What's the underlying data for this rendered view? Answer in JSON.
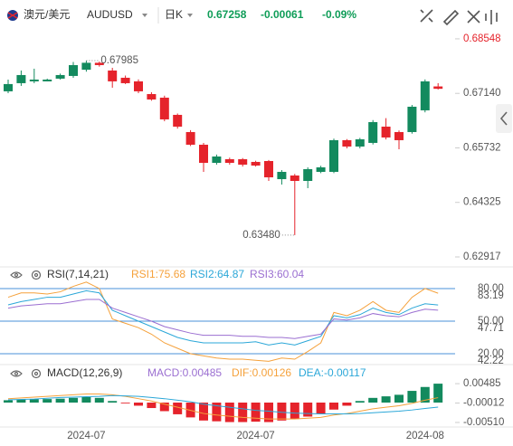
{
  "header": {
    "symbol": "澳元/美元",
    "code": "AUDUSD",
    "period": "日K",
    "price": "0.67258",
    "change": "-0.00061",
    "change_pct": "-0.09%"
  },
  "chart_data": [
    {
      "type": "candlestick",
      "categories": [
        null,
        null,
        null,
        null,
        null,
        null,
        "2024-07",
        null,
        null,
        null,
        null,
        null,
        null,
        null,
        null,
        null,
        null,
        null,
        null,
        "2024-07",
        null,
        null,
        null,
        null,
        null,
        null,
        null,
        null,
        null,
        null,
        null,
        null,
        "2024-08",
        null
      ],
      "open": [
        0.67193,
        0.67403,
        0.6745,
        0.6745,
        0.6752,
        0.6759,
        0.6775,
        0.6793,
        0.6773,
        0.67543,
        0.6745,
        0.67122,
        0.67029,
        0.66585,
        0.66141,
        0.65814,
        0.65346,
        0.6544,
        0.6544,
        0.6537,
        0.65393,
        0.64925,
        0.65019,
        0.64879,
        0.65113,
        0.65113,
        0.65931,
        0.65767,
        0.65861,
        0.66281,
        0.66141,
        0.66141,
        0.66702,
        0.67319
      ],
      "high": [
        0.67496,
        0.6773,
        0.67777,
        0.6752,
        0.6765,
        0.6795,
        0.67985,
        0.6796,
        0.678,
        0.676,
        0.675,
        0.6717,
        0.6708,
        0.6662,
        0.6619,
        0.6586,
        0.6556,
        0.6548,
        0.6547,
        0.654,
        0.6542,
        0.65159,
        0.6506,
        0.6523,
        0.6527,
        0.6597,
        0.6596,
        0.6599,
        0.6645,
        0.665,
        0.6618,
        0.6684,
        0.675,
        0.67403
      ],
      "low": [
        0.67146,
        0.67333,
        0.67403,
        0.6745,
        0.67496,
        0.67543,
        0.677,
        0.6783,
        0.67286,
        0.6738,
        0.67146,
        0.6695,
        0.6642,
        0.6623,
        0.6578,
        0.65113,
        0.653,
        0.653,
        0.6525,
        0.6525,
        0.64879,
        0.64785,
        0.6348,
        0.64692,
        0.6508,
        0.6508,
        0.6572,
        0.6572,
        0.6582,
        0.6595,
        0.65697,
        0.661,
        0.6665,
        0.6724
      ],
      "close": [
        0.6738,
        0.67613,
        0.67496,
        0.67496,
        0.67613,
        0.6787,
        0.6793,
        0.6787,
        0.6745,
        0.67403,
        0.67193,
        0.66982,
        0.66468,
        0.66281,
        0.65814,
        0.65346,
        0.6551,
        0.65346,
        0.65299,
        0.65276,
        0.64972,
        0.65113,
        0.64879,
        0.65183,
        0.6523,
        0.65931,
        0.65767,
        0.65954,
        0.66398,
        0.66001,
        0.65931,
        0.66795,
        0.6745,
        0.67258
      ],
      "up_color": "#138a5e",
      "down_color": "#e5232b",
      "ylim": [
        0.6273,
        0.6885
      ],
      "yticks": [
        {
          "value": 0.68548,
          "label": "0.68548"
        },
        {
          "value": 0.6714,
          "label": "0.67140"
        },
        {
          "value": 0.65732,
          "label": "0.65732"
        },
        {
          "value": 0.64325,
          "label": "0.64325"
        },
        {
          "value": 0.62917,
          "label": "0.62917"
        }
      ],
      "max_label": "0.67985",
      "min_label": "0.63480"
    },
    {
      "type": "line",
      "title": "RSI(7,14,21)",
      "series": [
        {
          "name": "RSI1:75.68",
          "color": "#f5a13b",
          "values": [
            72,
            76,
            76,
            75,
            77,
            82,
            86,
            80,
            52,
            48,
            44,
            38,
            30,
            25,
            20,
            18,
            16,
            15,
            15,
            14,
            13,
            16,
            15,
            22,
            30,
            58,
            55,
            60,
            68,
            60,
            58,
            72,
            80,
            75.68
          ]
        },
        {
          "name": "RSI2:64.87",
          "color": "#2ba7d8",
          "values": [
            65,
            68,
            70,
            72,
            72,
            75,
            78,
            76,
            60,
            55,
            50,
            45,
            40,
            35,
            32,
            30,
            30,
            30,
            30,
            31,
            28,
            30,
            28,
            32,
            36,
            55,
            53,
            56,
            62,
            58,
            56,
            62,
            66,
            64.87
          ]
        },
        {
          "name": "RSI3:60.04",
          "color": "#9b6fd1",
          "values": [
            62,
            64,
            65,
            66,
            66,
            68,
            70,
            70,
            62,
            58,
            54,
            50,
            45,
            42,
            39,
            37,
            37,
            37,
            36,
            36,
            35,
            35,
            34,
            36,
            38,
            52,
            51,
            53,
            57,
            55,
            54,
            58,
            61,
            60.04
          ]
        }
      ],
      "ylim": [
        12.5,
        85.8
      ],
      "yticks": [
        {
          "value": 80,
          "label": "80.00"
        },
        {
          "value": 50,
          "label": "50.00"
        },
        {
          "value": 20,
          "label": "20.00"
        }
      ],
      "readouts": [
        "83.19",
        "47.71",
        "42.22"
      ],
      "level_color": "#4a90d9"
    },
    {
      "type": "macd",
      "title": "MACD(12,26,9)",
      "series": [
        {
          "name": "MACD:0.00485",
          "color": "#9b6fd1",
          "up_color": "#138a5e",
          "down_color": "#e5232b",
          "values": [
            0.0006,
            0.0008,
            0.0009,
            0.0009,
            0.001,
            0.0012,
            0.0014,
            0.0012,
            0.0004,
            -0.0002,
            -0.0008,
            -0.0014,
            -0.0022,
            -0.003,
            -0.0038,
            -0.0046,
            -0.0048,
            -0.005,
            -0.005,
            -0.0049,
            -0.005,
            -0.0046,
            -0.0042,
            -0.0036,
            -0.0028,
            -0.0018,
            -0.0008,
            0.0004,
            0.0012,
            0.0016,
            0.002,
            0.003,
            0.004,
            0.00485
          ]
        },
        {
          "name": "DIF:0.00126",
          "color": "#f5a13b",
          "values": [
            0.001,
            0.0012,
            0.0014,
            0.0016,
            0.0018,
            0.002,
            0.0022,
            0.0022,
            0.002,
            0.0016,
            0.001,
            0.0004,
            -0.0004,
            -0.0012,
            -0.002,
            -0.0028,
            -0.0032,
            -0.0035,
            -0.0038,
            -0.004,
            -0.0042,
            -0.0042,
            -0.0042,
            -0.004,
            -0.0038,
            -0.0032,
            -0.0028,
            -0.0022,
            -0.0016,
            -0.0012,
            -0.0008,
            -0.0002,
            0.0006,
            0.00126
          ]
        },
        {
          "name": "DEA:-0.00117",
          "color": "#2ba7d8",
          "values": [
            0.0007,
            0.0008,
            0.0009,
            0.0011,
            0.0013,
            0.0014,
            0.0015,
            0.0016,
            0.0018,
            0.0017,
            0.0016,
            0.0013,
            0.001,
            0.0006,
            0.0002,
            -0.0004,
            -0.0008,
            -0.0012,
            -0.0016,
            -0.002,
            -0.0022,
            -0.0025,
            -0.0027,
            -0.0028,
            -0.0029,
            -0.0029,
            -0.0029,
            -0.0028,
            -0.0026,
            -0.0024,
            -0.0022,
            -0.0019,
            -0.0015,
            -0.00117
          ]
        }
      ],
      "ylim": [
        -0.0058,
        0.0058
      ],
      "yticks": [
        {
          "value": 0.00485,
          "label": "0.00485"
        },
        {
          "value": -0.00012,
          "label": "-0.00012"
        },
        {
          "value": -0.0051,
          "label": "-0.00510"
        }
      ]
    }
  ]
}
